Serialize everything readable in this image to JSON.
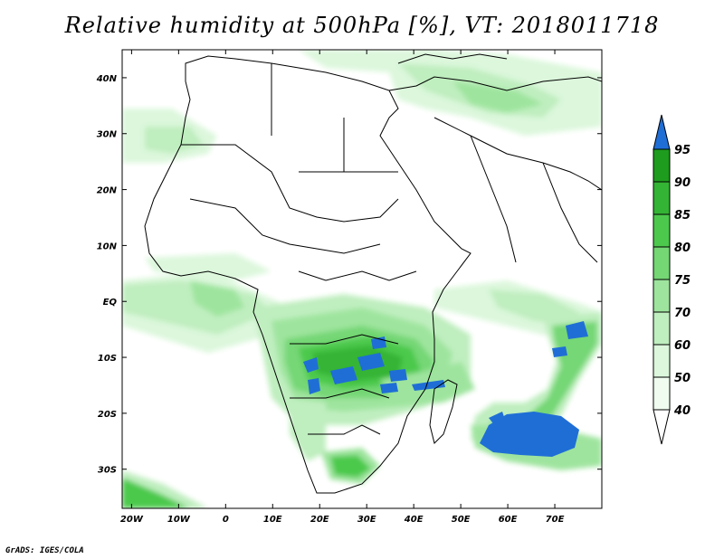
{
  "title": "Relative humidity at 500hPa [%], VT: 2018011718",
  "credit": "GrADS: IGES/COLA",
  "map": {
    "lon_range": [
      -22,
      80
    ],
    "lat_range": [
      -37,
      45
    ],
    "lon_ticks": [
      "20W",
      "10W",
      "0",
      "10E",
      "20E",
      "30E",
      "40E",
      "50E",
      "60E",
      "70E"
    ],
    "lat_ticks": [
      "40N",
      "30N",
      "20N",
      "10N",
      "EQ",
      "10S",
      "20S",
      "30S"
    ]
  },
  "colorbar": {
    "labels": [
      "95",
      "90",
      "85",
      "80",
      "75",
      "70",
      "60",
      "50",
      "40"
    ],
    "colors": [
      "#1f6ed6",
      "#1e9c1e",
      "#34b434",
      "#4cc94c",
      "#74d774",
      "#9ee49e",
      "#bfeebf",
      "#dcf7dc",
      "#effcef"
    ]
  },
  "field_colors": {
    "c40": "#effcef",
    "c50": "#dcf7dc",
    "c60": "#bfeebf",
    "c70": "#9ee49e",
    "c75": "#74d774",
    "c80": "#4cc94c",
    "c85": "#34b434",
    "c90": "#1e9c1e",
    "c95": "#1f6ed6"
  }
}
